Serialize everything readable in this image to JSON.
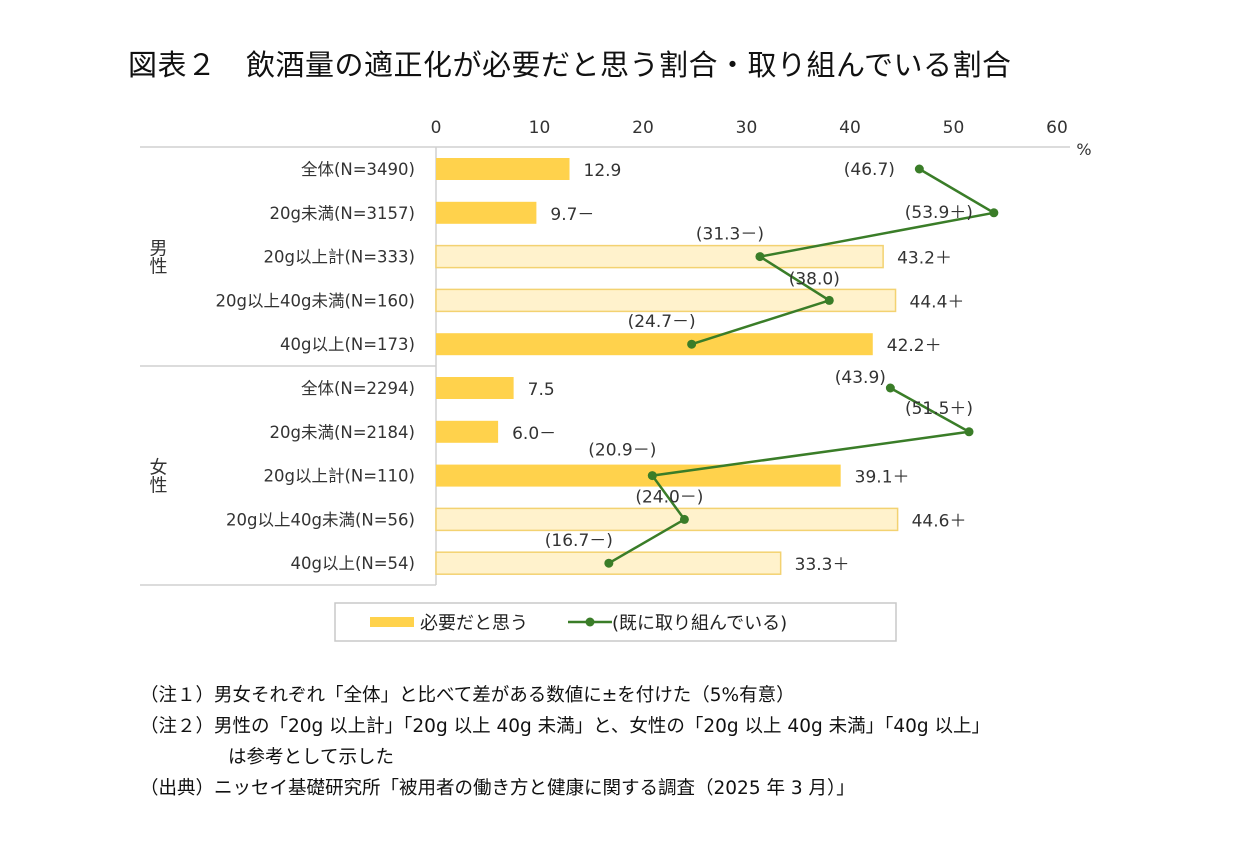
{
  "title": "図表２　飲酒量の適正化が必要だと思う割合・取り組んでいる割合",
  "chart_data": {
    "type": "bar+line",
    "title": "図表２　飲酒量の適正化が必要だと思う割合・取り組んでいる割合",
    "unit": "%",
    "xlim": [
      0,
      60
    ],
    "xticks": [
      "0",
      "10",
      "20",
      "30",
      "40",
      "50",
      "60"
    ],
    "groups": [
      {
        "name": "男性",
        "categories": [
          "全体(N=3490)",
          "20g未満(N=3157)",
          "20g以上計(N=333)",
          "20g以上40g未満(N=160)",
          "40g以上(N=173)"
        ]
      },
      {
        "name": "女性",
        "categories": [
          "全体(N=2294)",
          "20g未満(N=2184)",
          "20g以上計(N=110)",
          "20g以上40g未満(N=56)",
          "40g以上(N=54)"
        ]
      }
    ],
    "series": [
      {
        "name": "必要だと思う",
        "type": "bar",
        "color": "#FFD24C",
        "reference_color": "#FFF2CC",
        "values": [
          12.9,
          9.7,
          43.2,
          44.4,
          42.2,
          7.5,
          6.0,
          39.1,
          44.6,
          33.3
        ],
        "labels": [
          "12.9",
          "9.7－",
          "43.2＋",
          "44.4＋",
          "42.2＋",
          "7.5",
          "6.0－",
          "39.1＋",
          "44.6＋",
          "33.3＋"
        ],
        "reference": [
          false,
          false,
          true,
          true,
          false,
          false,
          false,
          false,
          true,
          true
        ]
      },
      {
        "name": "(既に取り組んでいる)",
        "type": "line",
        "color": "#3A7D28",
        "values": [
          46.7,
          53.9,
          31.3,
          38.0,
          24.7,
          43.9,
          51.5,
          20.9,
          24.0,
          16.7
        ],
        "labels": [
          "(46.7)",
          "(53.9＋)",
          "(31.3－)",
          "(38.0)",
          "(24.7－)",
          "(43.9)",
          "(51.5＋)",
          "(20.9－)",
          "(24.0－)",
          "(16.7－)"
        ]
      }
    ],
    "legend": "bottom"
  },
  "notes": [
    "（注１）男女それぞれ「全体」と比べて差がある数値に±を付けた（5%有意）",
    "（注２）男性の「20g 以上計」「20g 以上 40g 未満」と、女性の「20g 以上 40g 未満」「40g 以上」",
    "は参考として示した",
    "（出典）ニッセイ基礎研究所「被用者の働き方と健康に関する調査（2025 年 3 月）」"
  ]
}
